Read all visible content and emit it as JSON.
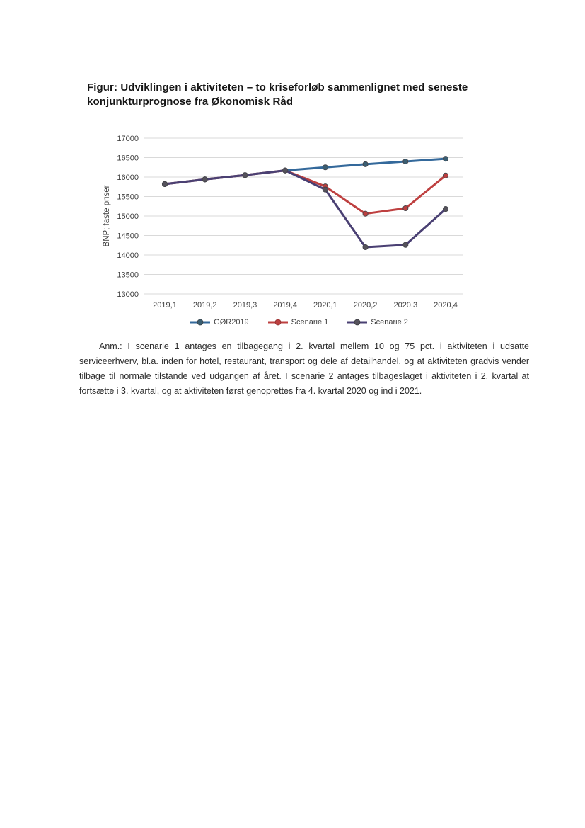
{
  "page": {
    "title": "Figur: Udviklingen i aktiviteten – to kriseforløb sammenlignet med seneste konjunkturprognose fra Økonomisk Råd",
    "note": "Anm.: I scenarie 1 antages en tilbagegang i 2. kvartal mellem 10 og 75 pct. i aktiviteten i udsatte serviceerhverv, bl.a. inden for hotel, restaurant, transport og dele af detailhandel, og at aktiviteten gradvis vender tilbage til normale tilstande ved udgangen af året. I scenarie 2 antages tilbageslaget i aktiviteten i 2. kvartal at fortsætte i 3. kvartal, og at aktiviteten først genoprettes fra 4. kvartal 2020 og ind i 2021."
  },
  "chart_data": {
    "type": "line",
    "title": "",
    "xlabel": "",
    "ylabel": "BNP; faste priser",
    "ylim": [
      13000,
      17000
    ],
    "ytick_step": 500,
    "grid": true,
    "legend_position": "bottom",
    "categories": [
      "2019,1",
      "2019,2",
      "2019,3",
      "2019,4",
      "2020,1",
      "2020,2",
      "2020,3",
      "2020,4"
    ],
    "series": [
      {
        "name": "GØR2019",
        "color": "#34699b",
        "marker_color": "#3a5e72",
        "values": [
          15820,
          15940,
          16050,
          16170,
          16250,
          16330,
          16400,
          16470
        ]
      },
      {
        "name": "Scenarie 1",
        "color": "#be4040",
        "marker_color": "#bc3f3f",
        "values": [
          15820,
          15940,
          16050,
          16170,
          15760,
          15060,
          15200,
          16040
        ]
      },
      {
        "name": "Scenarie 2",
        "color": "#4a4073",
        "marker_color": "#55525c",
        "values": [
          15820,
          15940,
          16050,
          16170,
          15680,
          14200,
          14260,
          15180
        ]
      }
    ]
  }
}
